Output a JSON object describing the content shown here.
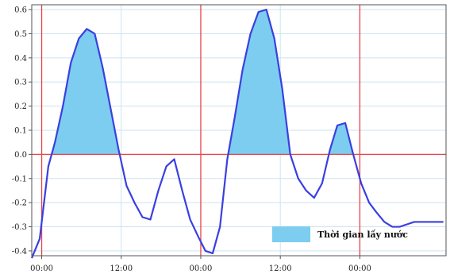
{
  "chart_data": {
    "type": "line",
    "title": "",
    "xlabel": "",
    "ylabel": "",
    "ylim": [
      -0.42,
      0.62
    ],
    "xlim": [
      0,
      62.5
    ],
    "x_unit": "hours",
    "yticks": [
      "-0.4",
      "-0.3",
      "-0.2",
      "-0.1",
      "0.0",
      "0.1",
      "0.2",
      "0.3",
      "0.4",
      "0.5",
      "0.6"
    ],
    "ytick_values": [
      -0.4,
      -0.3,
      -0.2,
      -0.1,
      0.0,
      0.1,
      0.2,
      0.3,
      0.4,
      0.5,
      0.6
    ],
    "xticks": [
      "00:00",
      "12:00",
      "00:00",
      "12:00",
      "00:00"
    ],
    "xtick_values": [
      1.5,
      13.5,
      25.5,
      37.5,
      49.5
    ],
    "red_vertical_lines_x": [
      1.5,
      25.5,
      49.5
    ],
    "red_horizontal_line_y": 0.0,
    "line_color": "#3a3fe0",
    "fill_color": "#7ccdef",
    "grid": true,
    "legend": {
      "label": "Thời gian lấy nước",
      "position": "bottom-right"
    },
    "series": [
      {
        "x": [
          0,
          1.2,
          2.5,
          3.5,
          4.7,
          5.9,
          7.1,
          8.3,
          9.5,
          10.7,
          11.9,
          13.1,
          14.3,
          15.5,
          16.7,
          17.9,
          19.1,
          20.3,
          21.5,
          22.7,
          23.9,
          25.1,
          26.2,
          27.3,
          28.4,
          29.5,
          30.6,
          31.8,
          33.0,
          34.2,
          35.4,
          36.6,
          37.8,
          39.0,
          40.2,
          41.4,
          42.6,
          43.8,
          45.0,
          46.1,
          47.3,
          48.5,
          49.7,
          50.9,
          52.0,
          53.2,
          54.4,
          55.5,
          56.6,
          57.7,
          58.8,
          60.0,
          61.0,
          62.1
        ],
        "y": [
          -0.43,
          -0.35,
          -0.05,
          0.05,
          0.2,
          0.38,
          0.48,
          0.52,
          0.5,
          0.36,
          0.19,
          0.02,
          -0.13,
          -0.2,
          -0.26,
          -0.27,
          -0.15,
          -0.05,
          -0.02,
          -0.15,
          -0.27,
          -0.34,
          -0.4,
          -0.41,
          -0.3,
          -0.02,
          0.15,
          0.35,
          0.5,
          0.59,
          0.6,
          0.48,
          0.27,
          0.0,
          -0.1,
          -0.15,
          -0.18,
          -0.12,
          0.02,
          0.12,
          0.13,
          0.0,
          -0.12,
          -0.2,
          -0.24,
          -0.28,
          -0.3,
          -0.3,
          -0.29,
          -0.28,
          -0.28,
          -0.28,
          -0.28,
          -0.28
        ]
      }
    ]
  }
}
